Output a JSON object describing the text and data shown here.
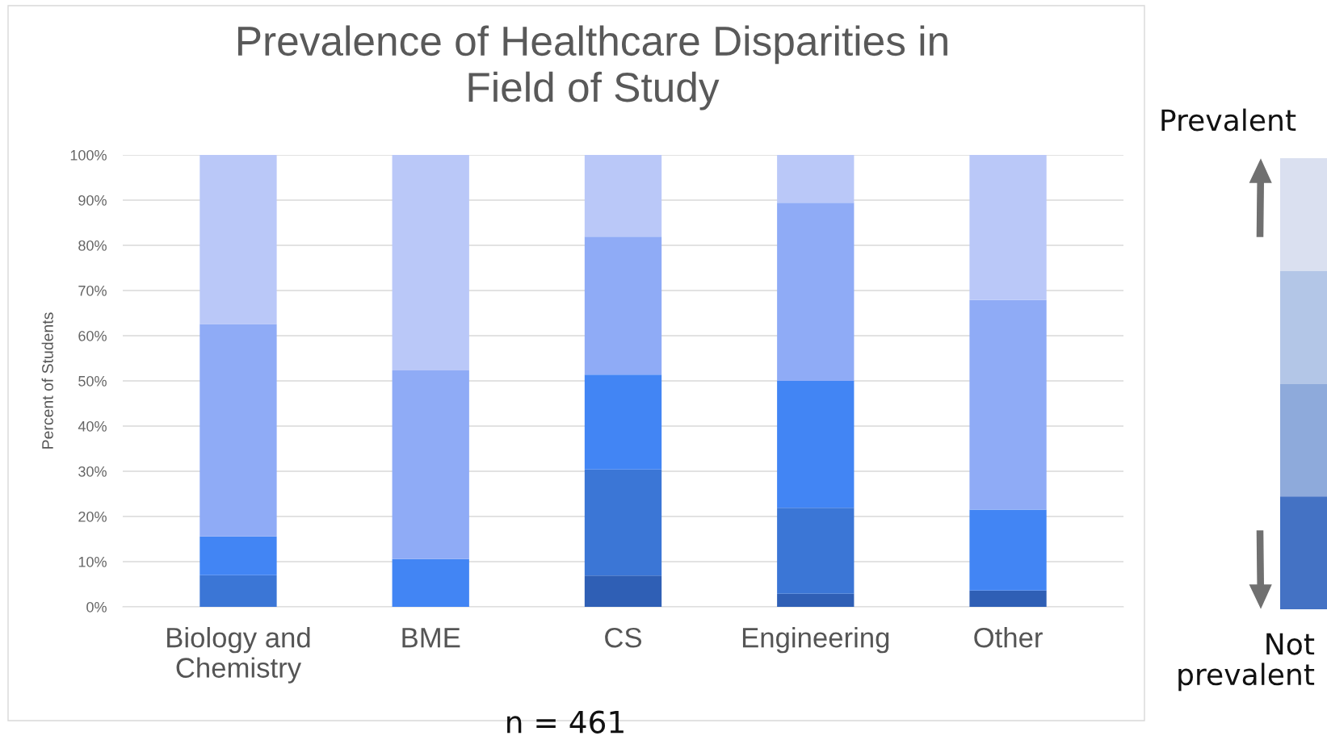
{
  "chart_data": {
    "type": "bar",
    "stacked": true,
    "title": "Prevalence of Healthcare Disparities in\nField of Study",
    "ylabel": "Percent of Students",
    "categories": [
      "Biology and\nChemistry",
      "BME",
      "CS",
      "Engineering",
      "Other"
    ],
    "series": [
      {
        "color": "#2f5fb5",
        "values": [
          0,
          0,
          6.9,
          2.9,
          3.6
        ]
      },
      {
        "color": "#3b76d6",
        "values": [
          7,
          0,
          23.5,
          19,
          0
        ]
      },
      {
        "color": "#4285f4",
        "values": [
          8.6,
          10.6,
          21,
          28.1,
          17.9
        ]
      },
      {
        "color": "#8fabf6",
        "values": [
          47,
          41.7,
          30.5,
          39.4,
          46.4
        ]
      },
      {
        "color": "#bac8f8",
        "values": [
          37.4,
          47.7,
          18.1,
          10.6,
          32.1
        ]
      }
    ],
    "ylim": [
      0,
      100
    ],
    "yticks": [
      {
        "value": 0,
        "label": "0%"
      },
      {
        "value": 10,
        "label": "10%"
      },
      {
        "value": 20,
        "label": "20%"
      },
      {
        "value": 30,
        "label": "30%"
      },
      {
        "value": 40,
        "label": "40%"
      },
      {
        "value": 50,
        "label": "50%"
      },
      {
        "value": 60,
        "label": "60%"
      },
      {
        "value": 70,
        "label": "70%"
      },
      {
        "value": 80,
        "label": "80%"
      },
      {
        "value": 90,
        "label": "90%"
      },
      {
        "value": 100,
        "label": "100%"
      }
    ],
    "grid": "y",
    "annotations": [
      "n = 461",
      "Prevalent",
      "Not\nprevalent"
    ]
  }
}
